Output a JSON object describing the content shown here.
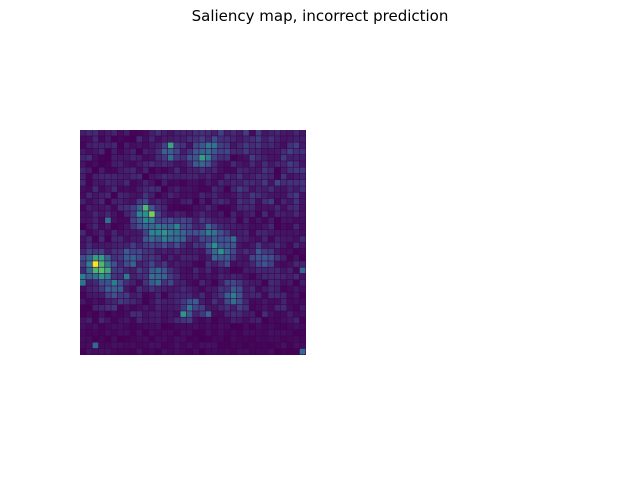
{
  "figure": {
    "title": "Saliency map, incorrect prediction"
  },
  "image": {
    "kind": "saliency-heatmap",
    "colormap": "viridis",
    "axes": "off",
    "colors": {
      "low": "#440154",
      "mid": "#31688e",
      "high": "#35b779",
      "peak": "#b5de2b"
    }
  }
}
